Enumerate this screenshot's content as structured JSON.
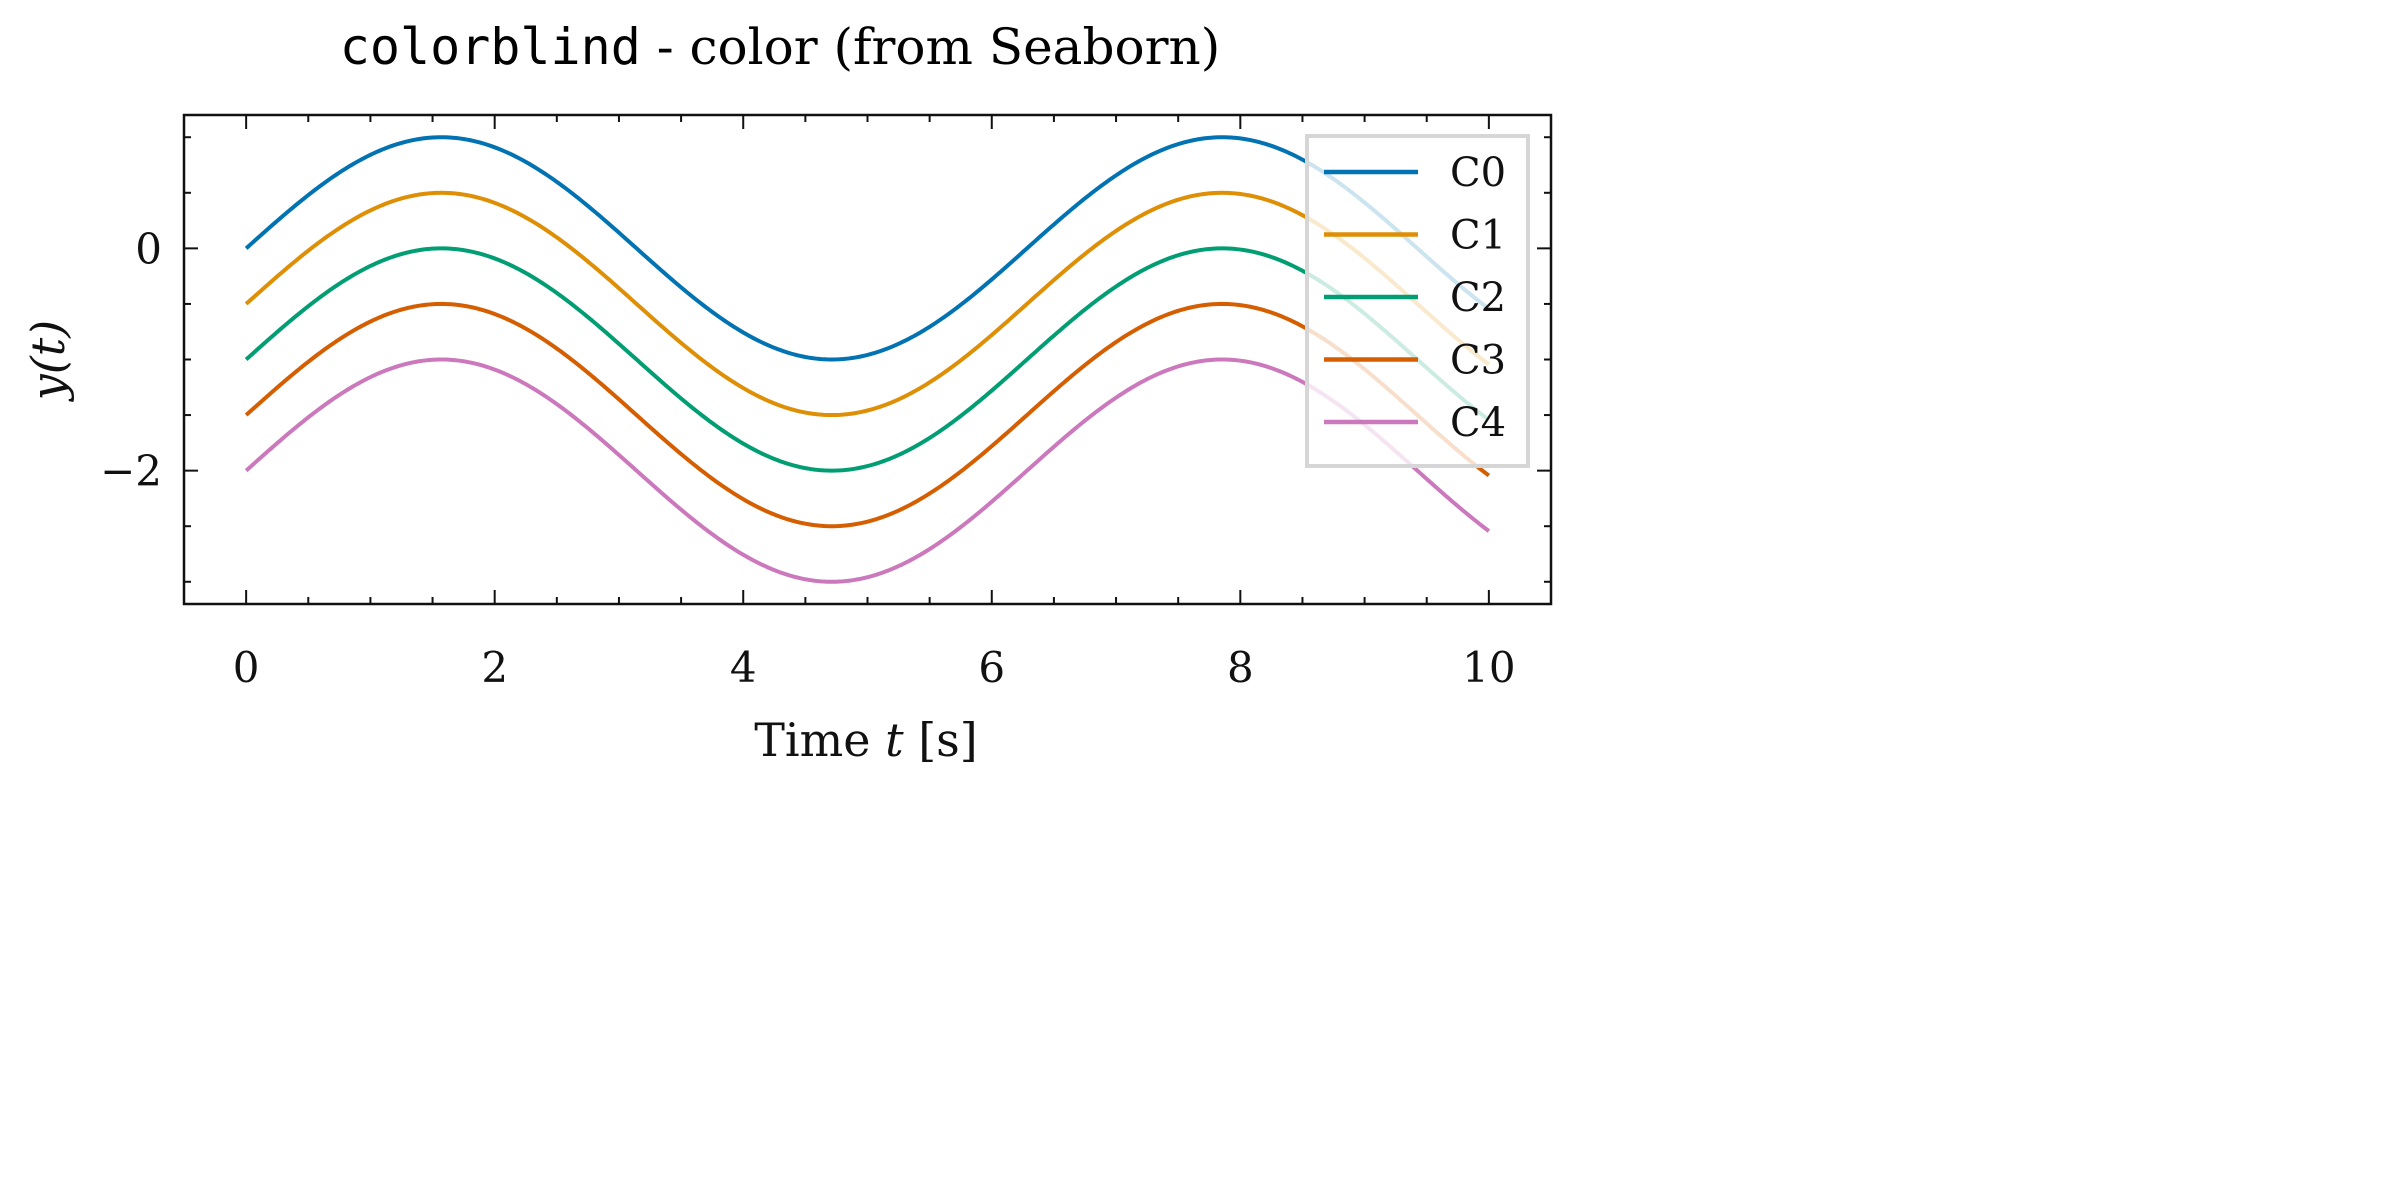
{
  "chart_data": {
    "type": "line",
    "title_code": "colorblind",
    "title_rest": " - color (from Seaborn)",
    "xlabel": "Time t [s]",
    "xlabel_main": "Time ",
    "xlabel_var": "t",
    "xlabel_unit": " [s]",
    "ylabel": "y(t)",
    "xlim": [
      -0.5,
      10.5
    ],
    "ylim": [
      -3.2,
      1.2
    ],
    "x_ticks": [
      0,
      2,
      4,
      6,
      8,
      10
    ],
    "x_tick_labels": [
      "0",
      "2",
      "4",
      "6",
      "8",
      "10"
    ],
    "y_ticks": [
      0,
      -2
    ],
    "y_tick_labels": [
      "0",
      "−2"
    ],
    "x_range": [
      0,
      10
    ],
    "function": "y = sin(t) - 0.5*i",
    "legend_position": "top-right",
    "grid": false,
    "series": [
      {
        "name": "C0",
        "offset": 0.0,
        "color": "#0173b2"
      },
      {
        "name": "C1",
        "offset": -0.5,
        "color": "#de8f05"
      },
      {
        "name": "C2",
        "offset": -1.0,
        "color": "#029e73"
      },
      {
        "name": "C3",
        "offset": -1.5,
        "color": "#d55e00"
      },
      {
        "name": "C4",
        "offset": -2.0,
        "color": "#cc78bc"
      }
    ]
  }
}
